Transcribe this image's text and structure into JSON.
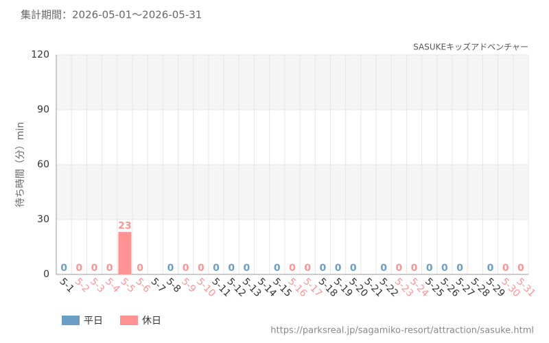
{
  "chart_data": {
    "type": "bar",
    "period": "集計期間：2026-05-01～2026-05-31",
    "title": "SASUKEキッズアドベンチャー",
    "y_label": "待ち時間（分）min",
    "source": "https://parksreal.jp/sagamiko-resort/attraction/sasuke.html",
    "categories": [
      "5-1",
      "5-2",
      "5-3",
      "5-4",
      "5-5",
      "5-6",
      "5-7",
      "5-8",
      "5-9",
      "5-10",
      "5-11",
      "5-12",
      "5-13",
      "5-14",
      "5-15",
      "5-16",
      "5-17",
      "5-18",
      "5-19",
      "5-20",
      "5-21",
      "5-22",
      "5-23",
      "5-24",
      "5-25",
      "5-26",
      "5-27",
      "5-28",
      "5-29",
      "5-30",
      "5-31"
    ],
    "series": [
      {
        "name": "平日",
        "color": "#6a9ec5",
        "values": [
          0,
          null,
          null,
          null,
          null,
          null,
          null,
          0,
          null,
          null,
          0,
          0,
          0,
          null,
          0,
          null,
          null,
          0,
          0,
          0,
          null,
          0,
          null,
          null,
          0,
          0,
          0,
          null,
          0,
          null,
          null
        ]
      },
      {
        "name": "休日",
        "color": "#ff9393",
        "values": [
          null,
          0,
          0,
          0,
          23,
          0,
          null,
          null,
          0,
          0,
          null,
          null,
          null,
          null,
          null,
          0,
          0,
          null,
          null,
          null,
          null,
          null,
          0,
          0,
          null,
          null,
          null,
          null,
          null,
          0,
          0
        ]
      }
    ],
    "ylim": [
      0,
      120
    ],
    "yticks": [
      0,
      30,
      60,
      90,
      120
    ],
    "grid": true
  }
}
